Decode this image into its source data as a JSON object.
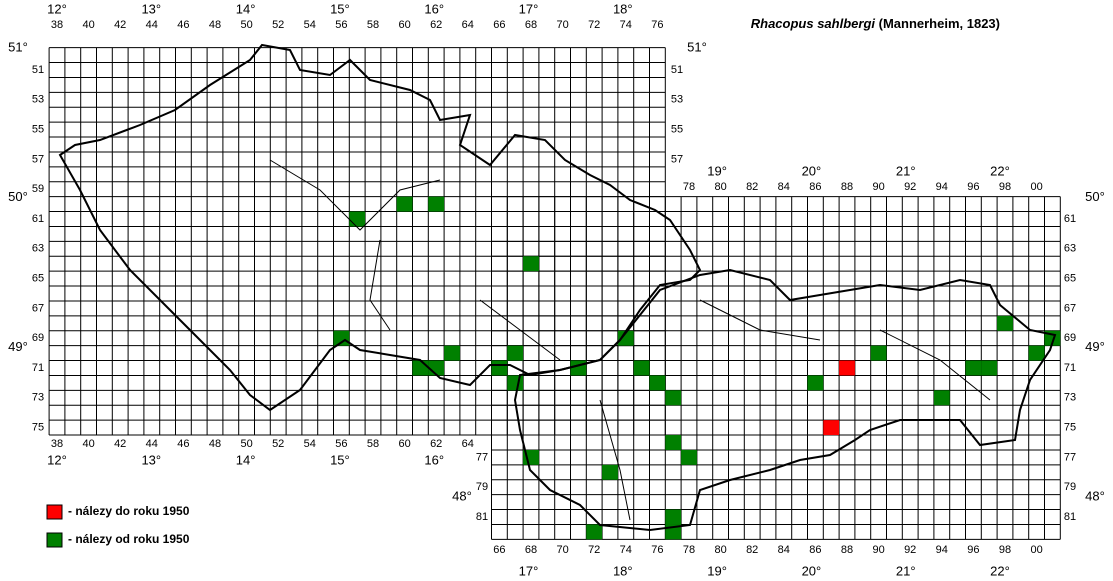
{
  "title": {
    "species": "Rhacopus sahlbergi",
    "author": " (Mannerheim, 1823)"
  },
  "legend": {
    "before_1950": "- nálezy do roku 1950",
    "since_1950": "- nálezy od roku 1950"
  },
  "colors": {
    "before_1950": "#ff0000",
    "since_1950": "#008000"
  },
  "lon_top_cz": [
    {
      "value": 12,
      "label": "12°"
    },
    {
      "value": 13,
      "label": "13°"
    },
    {
      "value": 14,
      "label": "14°"
    },
    {
      "value": 15,
      "label": "15°"
    },
    {
      "value": 16,
      "label": "16°"
    },
    {
      "value": 17,
      "label": "17°"
    },
    {
      "value": 18,
      "label": "18°"
    }
  ],
  "lon_bottom_cz": [
    {
      "value": 12,
      "label": "12°"
    },
    {
      "value": 13,
      "label": "13°"
    },
    {
      "value": 14,
      "label": "14°"
    },
    {
      "value": 15,
      "label": "15°"
    },
    {
      "value": 16,
      "label": "16°"
    }
  ],
  "lon_top_sk": [
    {
      "value": 19,
      "label": "19°"
    },
    {
      "value": 20,
      "label": "20°"
    },
    {
      "value": 21,
      "label": "21°"
    },
    {
      "value": 22,
      "label": "22°"
    }
  ],
  "lon_bottom_sk": [
    {
      "value": 17,
      "label": "17°"
    },
    {
      "value": 18,
      "label": "18°"
    },
    {
      "value": 19,
      "label": "19°"
    },
    {
      "value": 20,
      "label": "20°"
    },
    {
      "value": 21,
      "label": "21°"
    },
    {
      "value": 22,
      "label": "22°"
    }
  ],
  "lat_left_cz": [
    {
      "value": 51,
      "label": "51°"
    },
    {
      "value": 50,
      "label": "50°"
    },
    {
      "value": 49,
      "label": "49°"
    }
  ],
  "lat_right_cz": [
    {
      "value": 51,
      "label": "51°"
    }
  ],
  "lat_right_sk": [
    {
      "value": 50,
      "label": "50°"
    },
    {
      "value": 49,
      "label": "49°"
    },
    {
      "value": 48,
      "label": "48°"
    }
  ],
  "lat_left_sk": [
    {
      "value": 48,
      "label": "48°"
    }
  ],
  "cols_top_cz": [
    38,
    40,
    42,
    44,
    46,
    48,
    50,
    52,
    54,
    56,
    58,
    60,
    62,
    64,
    66,
    68,
    70,
    72,
    74,
    76
  ],
  "cols_bottom_cz": [
    38,
    40,
    42,
    44,
    46,
    48,
    50,
    52,
    54,
    56,
    58,
    60,
    62,
    64
  ],
  "cols_top_sk": [
    78,
    80,
    82,
    84,
    86,
    88,
    90,
    92,
    94,
    96,
    98,
    {
      "value": 100,
      "label": "00"
    }
  ],
  "cols_bottom_sk": [
    66,
    68,
    70,
    72,
    74,
    76,
    78,
    80,
    82,
    84,
    86,
    88,
    90,
    92,
    94,
    96,
    98,
    {
      "value": 100,
      "label": "00"
    }
  ],
  "rows_left_cz": [
    51,
    53,
    55,
    57,
    59,
    61,
    63,
    65,
    67,
    69,
    71,
    73,
    75
  ],
  "rows_right_cz": [
    51,
    53,
    55,
    57
  ],
  "rows_right_sk": [
    61,
    63,
    65,
    67,
    69,
    71,
    73,
    75,
    77,
    79,
    81
  ],
  "rows_left_sk": [
    77,
    79,
    81
  ],
  "findings": {
    "before_1950": [
      {
        "col": 88,
        "row": 71
      },
      {
        "col": 87,
        "row": 75
      }
    ],
    "since_1950": [
      {
        "col": 57,
        "row": 61
      },
      {
        "col": 60,
        "row": 60
      },
      {
        "col": 62,
        "row": 60
      },
      {
        "col": 68,
        "row": 64
      },
      {
        "col": 56,
        "row": 69
      },
      {
        "col": 63,
        "row": 70
      },
      {
        "col": 67,
        "row": 70
      },
      {
        "col": 74,
        "row": 69
      },
      {
        "col": 61,
        "row": 71
      },
      {
        "col": 62,
        "row": 71
      },
      {
        "col": 66,
        "row": 71
      },
      {
        "col": 67,
        "row": 72
      },
      {
        "col": 71,
        "row": 71
      },
      {
        "col": 75,
        "row": 71
      },
      {
        "col": 76,
        "row": 72
      },
      {
        "col": 77,
        "row": 73
      },
      {
        "col": 77,
        "row": 76
      },
      {
        "col": 78,
        "row": 77
      },
      {
        "col": 68,
        "row": 77
      },
      {
        "col": 73,
        "row": 78
      },
      {
        "col": 72,
        "row": 82
      },
      {
        "col": 77,
        "row": 81
      },
      {
        "col": 77,
        "row": 82
      },
      {
        "col": 86,
        "row": 72
      },
      {
        "col": 90,
        "row": 70
      },
      {
        "col": 94,
        "row": 73
      },
      {
        "col": 96,
        "row": 71
      },
      {
        "col": 97,
        "row": 71
      },
      {
        "col": 98,
        "row": 68
      },
      {
        "col": 100,
        "row": 70
      },
      {
        "col": 101,
        "row": 69
      }
    ]
  }
}
